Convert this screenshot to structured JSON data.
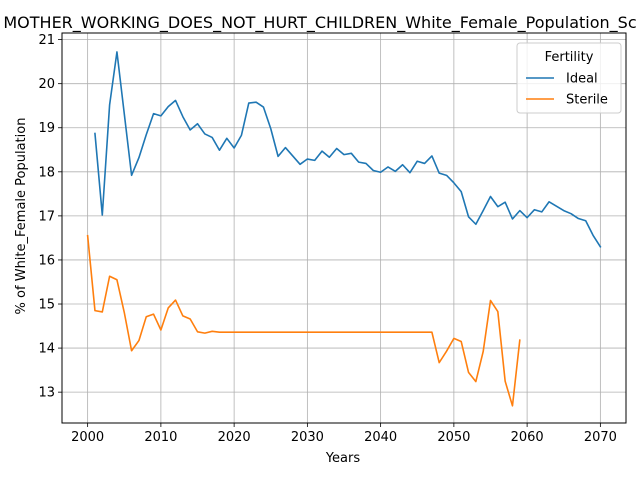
{
  "chart_data": {
    "type": "line",
    "title": "MOTHER_WORKING_DOES_NOT_HURT_CHILDREN_White_Female_Population_Sc",
    "xlabel": "Years",
    "ylabel": "% of White_Female Population",
    "xlim": [
      1996.5,
      2073.5
    ],
    "ylim": [
      12.3,
      21.15
    ],
    "xticks": [
      2000,
      2010,
      2020,
      2030,
      2040,
      2050,
      2060,
      2070
    ],
    "yticks": [
      13,
      14,
      15,
      16,
      17,
      18,
      19,
      20,
      21
    ],
    "grid": true,
    "legend": {
      "title": "Fertility",
      "position": "top-right"
    },
    "series": [
      {
        "name": "Ideal",
        "color": "#1f77b4",
        "x": [
          2001,
          2002,
          2003,
          2004,
          2005,
          2006,
          2007,
          2008,
          2009,
          2010,
          2011,
          2012,
          2013,
          2014,
          2015,
          2016,
          2017,
          2018,
          2019,
          2020,
          2021,
          2022,
          2023,
          2024,
          2025,
          2026,
          2027,
          2028,
          2029,
          2030,
          2031,
          2032,
          2033,
          2034,
          2035,
          2036,
          2037,
          2038,
          2039,
          2040,
          2041,
          2042,
          2043,
          2044,
          2045,
          2046,
          2047,
          2048,
          2049,
          2050,
          2051,
          2052,
          2053,
          2054,
          2055,
          2056,
          2057,
          2058,
          2059,
          2060,
          2061,
          2062,
          2063,
          2064,
          2065,
          2066,
          2067,
          2068,
          2069,
          2070
        ],
        "values": [
          18.87,
          17.02,
          19.52,
          20.72,
          19.32,
          17.92,
          18.32,
          18.84,
          19.32,
          19.27,
          19.48,
          19.62,
          19.25,
          18.95,
          19.09,
          18.86,
          18.78,
          18.49,
          18.76,
          18.54,
          18.83,
          19.56,
          19.58,
          19.47,
          18.98,
          18.35,
          18.55,
          18.36,
          18.17,
          18.29,
          18.26,
          18.47,
          18.33,
          18.53,
          18.39,
          18.42,
          18.22,
          18.19,
          18.03,
          17.99,
          18.11,
          18.01,
          18.16,
          17.98,
          18.24,
          18.19,
          18.36,
          17.97,
          17.92,
          17.75,
          17.55,
          16.98,
          16.81,
          17.12,
          17.44,
          17.21,
          17.31,
          16.93,
          17.12,
          16.96,
          17.14,
          17.09,
          17.32,
          17.22,
          17.12,
          17.05,
          16.94,
          16.89,
          16.56,
          16.3
        ]
      },
      {
        "name": "Sterile",
        "color": "#ff7f0e",
        "x": [
          2000,
          2001,
          2002,
          2003,
          2004,
          2005,
          2006,
          2007,
          2008,
          2009,
          2010,
          2011,
          2012,
          2013,
          2014,
          2015,
          2016,
          2017,
          2018,
          2019,
          2020,
          2021,
          2022,
          2023,
          2024,
          2025,
          2026,
          2027,
          2028,
          2029,
          2030,
          2031,
          2032,
          2033,
          2034,
          2035,
          2036,
          2037,
          2038,
          2039,
          2040,
          2041,
          2042,
          2043,
          2044,
          2045,
          2046,
          2047,
          2048,
          2049,
          2050,
          2051,
          2052,
          2053,
          2054,
          2055,
          2056,
          2057,
          2058,
          2059
        ],
        "values": [
          16.55,
          14.85,
          14.82,
          15.63,
          15.55,
          14.81,
          13.94,
          14.17,
          14.71,
          14.77,
          14.41,
          14.91,
          15.09,
          14.73,
          14.66,
          14.37,
          14.34,
          14.38,
          14.36,
          14.36,
          14.36,
          14.36,
          14.36,
          14.36,
          14.36,
          14.36,
          14.36,
          14.36,
          14.36,
          14.36,
          14.36,
          14.36,
          14.36,
          14.36,
          14.36,
          14.36,
          14.36,
          14.36,
          14.36,
          14.36,
          14.36,
          14.36,
          14.36,
          14.36,
          14.36,
          14.36,
          14.36,
          14.36,
          13.67,
          13.93,
          14.22,
          14.15,
          13.45,
          13.24,
          13.92,
          15.08,
          14.83,
          13.25,
          12.69,
          14.18
        ]
      }
    ]
  }
}
